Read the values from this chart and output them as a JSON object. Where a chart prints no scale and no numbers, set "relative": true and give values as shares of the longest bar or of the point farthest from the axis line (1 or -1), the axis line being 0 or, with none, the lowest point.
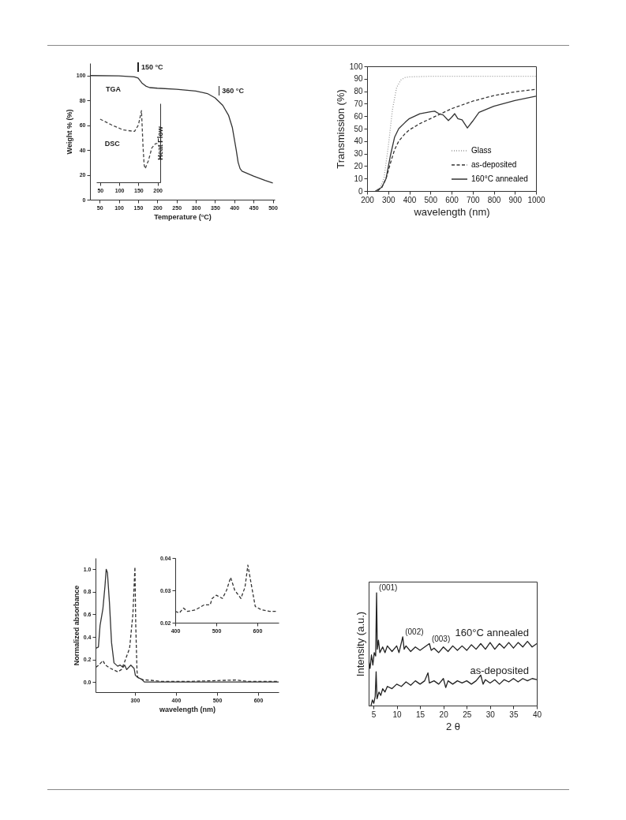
{
  "chart_data": [
    {
      "type": "line",
      "xlabel": "Temperature (°C)",
      "ylabel": "Weight % (%)",
      "xlim": [
        25,
        505
      ],
      "ylim": [
        0,
        110
      ],
      "xticks": [
        50,
        100,
        150,
        200,
        250,
        300,
        350,
        400,
        450,
        500
      ],
      "yticks": [
        0,
        20,
        40,
        60,
        80,
        100
      ],
      "series": [
        {
          "name": "TGA",
          "color": "#333333",
          "line_style": "solid",
          "x": [
            25,
            100,
            140,
            150,
            160,
            170,
            180,
            200,
            250,
            300,
            330,
            350,
            370,
            385,
            395,
            405,
            410,
            415,
            420,
            450,
            480,
            500
          ],
          "values": [
            100,
            99.7,
            99,
            98,
            94,
            91.5,
            90.3,
            89.8,
            89,
            87.5,
            85.5,
            82,
            76,
            68,
            58,
            40,
            30,
            25,
            23,
            19,
            15.5,
            13.5
          ]
        }
      ],
      "annotations": [
        {
          "text": "150 °C",
          "x": 150,
          "y": 98
        },
        {
          "text": "360 °C",
          "x": 360,
          "y": 79
        }
      ]
    },
    {
      "type": "line",
      "relative": true,
      "ylabel": "Heat Flow",
      "xlim": [
        40,
        207
      ],
      "xticks": [
        50,
        100,
        150,
        200
      ],
      "series": [
        {
          "name": "DSC",
          "color": "#444444",
          "line_style": "dashed",
          "x": [
            50,
            80,
            110,
            140,
            150,
            158,
            162,
            165,
            168,
            172,
            176,
            185,
            195,
            200
          ],
          "values": [
            0.88,
            0.8,
            0.73,
            0.71,
            0.8,
            1.0,
            0.5,
            0.24,
            0.19,
            0.25,
            0.3,
            0.48,
            0.54,
            0.54
          ]
        }
      ]
    },
    {
      "type": "line",
      "xlabel": "wavelength (nm)",
      "ylabel": "Transmission (%)",
      "xlim": [
        200,
        1000
      ],
      "ylim": [
        0,
        100
      ],
      "xticks": [
        200,
        300,
        400,
        500,
        600,
        700,
        800,
        900,
        1000
      ],
      "yticks": [
        0,
        10,
        20,
        30,
        40,
        50,
        60,
        70,
        80,
        90,
        100
      ],
      "legend": "bottom right",
      "series": [
        {
          "name": "Glass",
          "color": "#999999",
          "line_style": "dotted",
          "x": [
            240,
            260,
            280,
            300,
            320,
            340,
            360,
            380,
            400,
            500,
            700,
            1000
          ],
          "values": [
            0,
            2,
            10,
            35,
            65,
            83,
            89,
            91,
            91.5,
            92,
            92,
            92
          ]
        },
        {
          "name": "as-deposited",
          "color": "#333333",
          "line_style": "dashed",
          "x": [
            250,
            270,
            290,
            310,
            330,
            350,
            380,
            400,
            450,
            500,
            550,
            600,
            700,
            800,
            900,
            1000
          ],
          "values": [
            0,
            3,
            10,
            22,
            33,
            40,
            46,
            49,
            54,
            58,
            62,
            66,
            72,
            76.5,
            79.5,
            81.5
          ]
        },
        {
          "name": "160°C annealed",
          "color": "#333333",
          "line_style": "solid",
          "x": [
            240,
            270,
            290,
            310,
            330,
            350,
            380,
            400,
            450,
            500,
            520,
            540,
            560,
            585,
            600,
            615,
            630,
            650,
            675,
            700,
            730,
            800,
            900,
            1000
          ],
          "values": [
            0,
            3,
            10,
            28,
            43,
            50,
            55,
            58,
            62,
            63.5,
            64,
            62,
            61,
            56.5,
            59,
            62,
            58,
            57,
            50.5,
            56,
            63,
            68,
            72.5,
            76
          ]
        }
      ]
    },
    {
      "type": "line",
      "xlabel": "wavelength  (nm)",
      "ylabel": "Normalized absorbance",
      "xlim": [
        204,
        650
      ],
      "ylim": [
        -0.09,
        1.1
      ],
      "xticks": [
        300,
        400,
        500,
        600
      ],
      "yticks": [
        {
          "value": 0,
          "label": "0.0"
        },
        0.2,
        0.4,
        0.6,
        0.8,
        {
          "value": 1,
          "label": "1.0"
        }
      ],
      "series": [
        {
          "color": "#333333",
          "line_style": "solid",
          "x": [
            205,
            211,
            215,
            222,
            227,
            230,
            233,
            238,
            243,
            249,
            258,
            264,
            271,
            275,
            280,
            290,
            298,
            301,
            307,
            316,
            323,
            400,
            650
          ],
          "values": [
            0.3,
            0.31,
            0.5,
            0.65,
            0.85,
            1.0,
            0.97,
            0.7,
            0.35,
            0.17,
            0.14,
            0.15,
            0.13,
            0.15,
            0.11,
            0.15,
            0.12,
            0.06,
            0.04,
            0.025,
            0,
            0,
            0
          ]
        },
        {
          "color": "#333333",
          "line_style": "dashed",
          "x": [
            205,
            212,
            222,
            228,
            241,
            258,
            267,
            275,
            287,
            295,
            300,
            302,
            305,
            307,
            320,
            339,
            365,
            430,
            496,
            548,
            574,
            650
          ],
          "values": [
            0.13,
            0.15,
            0.19,
            0.15,
            0.12,
            0.09,
            0.11,
            0.18,
            0.3,
            0.6,
            1.02,
            0.5,
            0.1,
            0.04,
            0.02,
            0.015,
            0.005,
            0.005,
            0.012,
            0.018,
            0.005,
            0.005
          ]
        }
      ]
    },
    {
      "type": "line",
      "xlim": [
        400,
        652
      ],
      "ylim": [
        0.02,
        0.04
      ],
      "xticks": [
        400,
        500,
        600
      ],
      "yticks": [
        0.02,
        0.03,
        0.04
      ],
      "series": [
        {
          "color": "#333333",
          "line_style": "dashed",
          "x": [
            400,
            410,
            420,
            430,
            450,
            470,
            485,
            490,
            500,
            515,
            525,
            535,
            545,
            560,
            570,
            577,
            585,
            595,
            610,
            630,
            650
          ],
          "values": [
            0.0235,
            0.023,
            0.0245,
            0.0235,
            0.024,
            0.0255,
            0.0255,
            0.0275,
            0.0285,
            0.0275,
            0.03,
            0.034,
            0.03,
            0.0275,
            0.031,
            0.0378,
            0.032,
            0.025,
            0.024,
            0.0235,
            0.0235
          ]
        }
      ]
    },
    {
      "type": "line",
      "relative": true,
      "xlabel": "2 θ",
      "ylabel": "Intensity (a.u.)",
      "xlim": [
        4,
        40
      ],
      "xticks": [
        5,
        10,
        15,
        20,
        25,
        30,
        35,
        40
      ],
      "series": [
        {
          "name": "160°C annealed",
          "color": "#222222",
          "line_style": "solid",
          "x": [
            4,
            4.3,
            4.6,
            4.9,
            5.2,
            5.5,
            5.7,
            5.85,
            6.1,
            6.4,
            7,
            7.5,
            8,
            9,
            10,
            10.5,
            11.3,
            11.6,
            12,
            13,
            14,
            15,
            16,
            17,
            17.4,
            18,
            19,
            20,
            21,
            22,
            23,
            24,
            25,
            26,
            27,
            28,
            29,
            30,
            31,
            32,
            33,
            34,
            35,
            36,
            37,
            38,
            39,
            40
          ],
          "values": [
            0.4,
            0.33,
            0.45,
            0.36,
            0.47,
            0.44,
            1.0,
            0.5,
            0.58,
            0.47,
            0.52,
            0.47,
            0.53,
            0.48,
            0.53,
            0.47,
            0.61,
            0.5,
            0.53,
            0.48,
            0.52,
            0.49,
            0.52,
            0.55,
            0.49,
            0.51,
            0.47,
            0.52,
            0.48,
            0.53,
            0.49,
            0.53,
            0.49,
            0.54,
            0.5,
            0.55,
            0.5,
            0.56,
            0.5,
            0.55,
            0.51,
            0.56,
            0.51,
            0.56,
            0.52,
            0.57,
            0.52,
            0.55
          ]
        },
        {
          "name": "as-deposited",
          "color": "#222222",
          "line_style": "solid",
          "x": [
            4.5,
            4.8,
            5.1,
            5.4,
            5.6,
            5.8,
            6.2,
            6.6,
            7,
            7.5,
            8,
            9,
            10,
            11,
            12,
            13,
            14,
            15,
            16,
            16.7,
            17,
            18,
            19,
            20,
            20.5,
            21,
            22,
            23,
            24,
            25,
            26,
            27,
            28,
            28.5,
            29,
            30,
            31,
            32,
            33,
            34,
            35,
            36,
            37,
            38,
            39,
            40
          ],
          "values": [
            0,
            0.05,
            0.02,
            0.08,
            0.3,
            0.06,
            0.12,
            0.09,
            0.15,
            0.12,
            0.17,
            0.15,
            0.19,
            0.17,
            0.21,
            0.18,
            0.22,
            0.19,
            0.22,
            0.29,
            0.2,
            0.22,
            0.19,
            0.24,
            0.16,
            0.22,
            0.19,
            0.22,
            0.2,
            0.22,
            0.19,
            0.22,
            0.27,
            0.19,
            0.23,
            0.2,
            0.23,
            0.19,
            0.23,
            0.21,
            0.24,
            0.21,
            0.24,
            0.22,
            0.24,
            0.23
          ]
        }
      ],
      "annotations": [
        {
          "text": "(001)",
          "x": 5.7,
          "y": 1.0
        },
        {
          "text": "(002)",
          "x": 11.3,
          "y": 0.61
        },
        {
          "text": "(003)",
          "x": 17,
          "y": 0.55
        }
      ]
    }
  ]
}
